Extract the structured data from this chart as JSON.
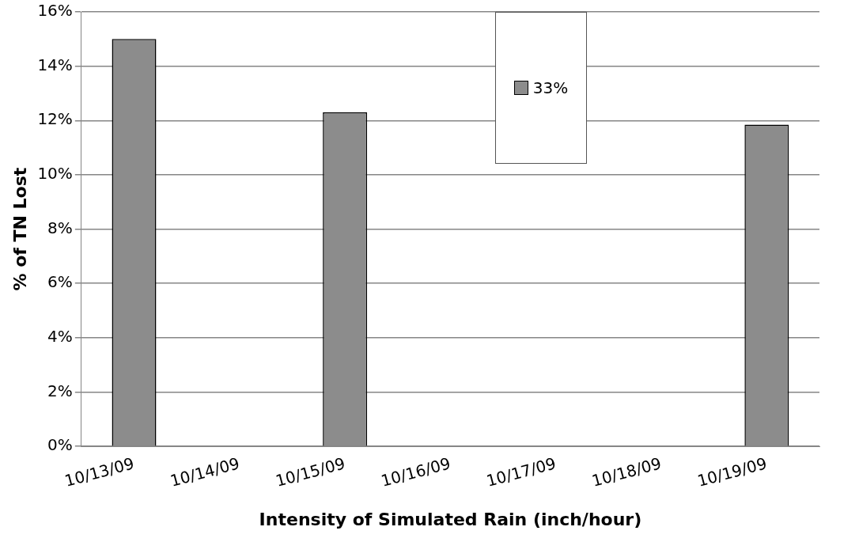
{
  "chart_data": {
    "type": "bar",
    "xlabel": "Intensity of Simulated Rain (inch/hour)",
    "ylabel": "% of TN Lost",
    "categories": [
      "10/13/09",
      "10/14/09",
      "10/15/09",
      "10/16/09",
      "10/17/09",
      "10/18/09",
      "10/19/09"
    ],
    "values": [
      15,
      null,
      12.3,
      null,
      null,
      null,
      11.85
    ],
    "color": "#8c8c8c",
    "ylim": [
      0,
      16
    ],
    "yticks": [
      {
        "value": 0,
        "label": "0%"
      },
      {
        "value": 2,
        "label": "2%"
      },
      {
        "value": 4,
        "label": "4%"
      },
      {
        "value": 6,
        "label": "6%"
      },
      {
        "value": 8,
        "label": "8%"
      },
      {
        "value": 10,
        "label": "10%"
      },
      {
        "value": 12,
        "label": "12%"
      },
      {
        "value": 14,
        "label": "14%"
      },
      {
        "value": 16,
        "label": "16%"
      }
    ],
    "grid": "y",
    "annotations": [
      "33%"
    ]
  }
}
